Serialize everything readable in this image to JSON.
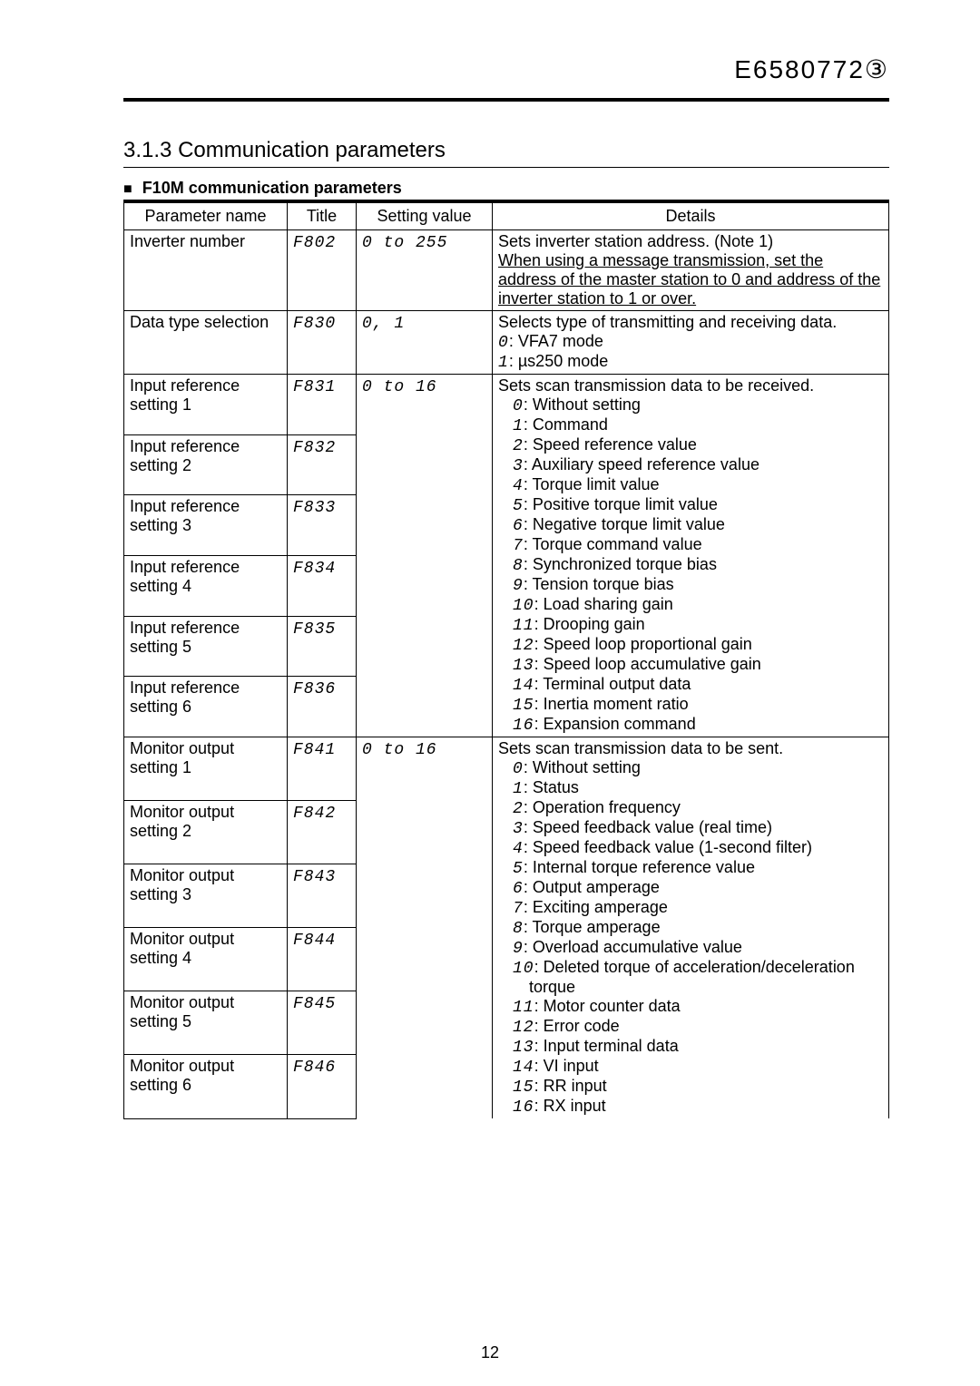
{
  "header": {
    "doc_code": "E6580772③"
  },
  "section": {
    "number": "3.1.3",
    "title": "Communication parameters"
  },
  "subhead": "F10M communication parameters",
  "table": {
    "columns": [
      "Parameter name",
      "Title",
      "Setting value",
      "Details"
    ],
    "groups": [
      {
        "rows": [
          {
            "name": "Inverter number",
            "title": "F802",
            "setting": "0 to 255"
          }
        ],
        "details": [
          {
            "type": "plain",
            "text": "Sets inverter station address. (Note 1)"
          },
          {
            "type": "underline",
            "text": "When using a message transmission, set the address of the master station to 0 and address of the inverter station to 1 or over."
          }
        ]
      },
      {
        "rows": [
          {
            "name": "Data type selection",
            "title": "F830",
            "setting": "0, 1"
          }
        ],
        "details": [
          {
            "type": "plain",
            "text": "Selects type of transmitting and receiving data."
          },
          {
            "type": "code",
            "code": "0",
            "text": ": VFA7 mode"
          },
          {
            "type": "code",
            "code": "1",
            "text": ": µs250 mode"
          }
        ]
      },
      {
        "rows": [
          {
            "name": "Input reference setting 1",
            "title": "F831",
            "setting": "0 to 16"
          },
          {
            "name": "Input reference setting 2",
            "title": "F832"
          },
          {
            "name": "Input reference setting 3",
            "title": "F833"
          },
          {
            "name": "Input reference setting 4",
            "title": "F834"
          },
          {
            "name": "Input reference setting 5",
            "title": "F835"
          },
          {
            "name": "Input reference setting 6",
            "title": "F836"
          }
        ],
        "details": [
          {
            "type": "plain",
            "text": "Sets scan transmission data to be received."
          },
          {
            "type": "code",
            "code": "0",
            "text": ": Without setting",
            "indent": true
          },
          {
            "type": "code",
            "code": "1",
            "text": ": Command",
            "indent": true
          },
          {
            "type": "code",
            "code": "2",
            "text": ": Speed reference value",
            "indent": true
          },
          {
            "type": "code",
            "code": "3",
            "text": ": Auxiliary speed reference value",
            "indent": true
          },
          {
            "type": "code",
            "code": "4",
            "text": ": Torque limit value",
            "indent": true
          },
          {
            "type": "code",
            "code": "5",
            "text": ": Positive torque limit value",
            "indent": true
          },
          {
            "type": "code",
            "code": "6",
            "text": ": Negative torque limit value",
            "indent": true
          },
          {
            "type": "code",
            "code": "7",
            "text": ": Torque command value",
            "indent": true
          },
          {
            "type": "code",
            "code": "8",
            "text": ": Synchronized torque bias",
            "indent": true
          },
          {
            "type": "code",
            "code": "9",
            "text": ": Tension torque bias",
            "indent": true
          },
          {
            "type": "code",
            "code": "10",
            "text": ": Load sharing gain",
            "indent": true
          },
          {
            "type": "code",
            "code": "11",
            "text": ": Drooping gain",
            "indent": true
          },
          {
            "type": "code",
            "code": "12",
            "text": ": Speed loop proportional gain",
            "indent": true
          },
          {
            "type": "code",
            "code": "13",
            "text": ": Speed loop accumulative gain",
            "indent": true
          },
          {
            "type": "code",
            "code": "14",
            "text": ": Terminal output data",
            "indent": true
          },
          {
            "type": "code",
            "code": "15",
            "text": ": Inertia moment ratio",
            "indent": true
          },
          {
            "type": "code",
            "code": "16",
            "text": ": Expansion command",
            "indent": true
          }
        ]
      },
      {
        "rows": [
          {
            "name": "Monitor output setting 1",
            "title": "F841",
            "setting": "0 to 16"
          },
          {
            "name": "Monitor output setting 2",
            "title": "F842"
          },
          {
            "name": "Monitor output setting 3",
            "title": "F843"
          },
          {
            "name": "Monitor output setting 4",
            "title": "F844"
          },
          {
            "name": "Monitor output setting 5",
            "title": "F845"
          },
          {
            "name": "Monitor output setting 6",
            "title": "F846"
          }
        ],
        "details": [
          {
            "type": "plain",
            "text": "Sets scan transmission data to be sent."
          },
          {
            "type": "code",
            "code": "0",
            "text": ": Without setting",
            "indent": true
          },
          {
            "type": "code",
            "code": "1",
            "text": ": Status",
            "indent": true
          },
          {
            "type": "code",
            "code": "2",
            "text": ": Operation frequency",
            "indent": true
          },
          {
            "type": "code",
            "code": "3",
            "text": ": Speed feedback value (real time)",
            "indent": true
          },
          {
            "type": "code",
            "code": "4",
            "text": ": Speed feedback value (1-second filter)",
            "indent": true
          },
          {
            "type": "code",
            "code": "5",
            "text": ": Internal torque reference value",
            "indent": true
          },
          {
            "type": "code",
            "code": "6",
            "text": ": Output amperage",
            "indent": true
          },
          {
            "type": "code",
            "code": "7",
            "text": ": Exciting amperage",
            "indent": true
          },
          {
            "type": "code",
            "code": "8",
            "text": ": Torque amperage",
            "indent": true
          },
          {
            "type": "code",
            "code": "9",
            "text": ": Overload accumulative value",
            "indent": true
          },
          {
            "type": "code",
            "code": "10",
            "text": ": Deleted torque of acceleration/deceleration torque",
            "indent": true
          },
          {
            "type": "code",
            "code": "11",
            "text": ": Motor counter data",
            "indent": true
          },
          {
            "type": "code",
            "code": "12",
            "text": ": Error code",
            "indent": true
          },
          {
            "type": "code",
            "code": "13",
            "text": ": Input terminal data",
            "indent": true
          },
          {
            "type": "code",
            "code": "14",
            "text": ": VI input",
            "indent": true
          },
          {
            "type": "code",
            "code": "15",
            "text": ": RR input",
            "indent": true
          },
          {
            "type": "code",
            "code": "16",
            "text": ": RX input",
            "indent": true
          }
        ]
      }
    ]
  },
  "page_number": "12"
}
